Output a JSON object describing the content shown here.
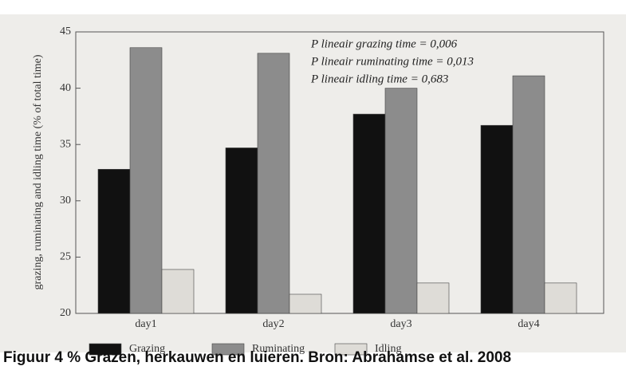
{
  "chart_data": {
    "type": "bar",
    "ylabel": "grazing, ruminating and idling time (% of total time)",
    "categories": [
      "day1",
      "day2",
      "day3",
      "day4"
    ],
    "series": [
      {
        "name": "Grazing",
        "color": "#111111",
        "values": [
          32.8,
          34.7,
          37.7,
          36.7
        ]
      },
      {
        "name": "Ruminating",
        "color": "#8c8c8c",
        "values": [
          43.6,
          43.1,
          40.0,
          41.1
        ]
      },
      {
        "name": "Idling",
        "color": "#dedcd7",
        "values": [
          23.9,
          21.7,
          22.7,
          22.7
        ]
      }
    ],
    "ylim": [
      20,
      45
    ],
    "yticks": [
      20,
      25,
      30,
      35,
      40,
      45
    ],
    "annotations": [
      "P lineair grazing time = 0,006",
      "P lineair ruminating time = 0,013",
      "P lineair idling time = 0,683"
    ],
    "caption": "Figuur 4 % Grazen, herkauwen en luieren. Bron: Abrahamse et al. 2008"
  }
}
